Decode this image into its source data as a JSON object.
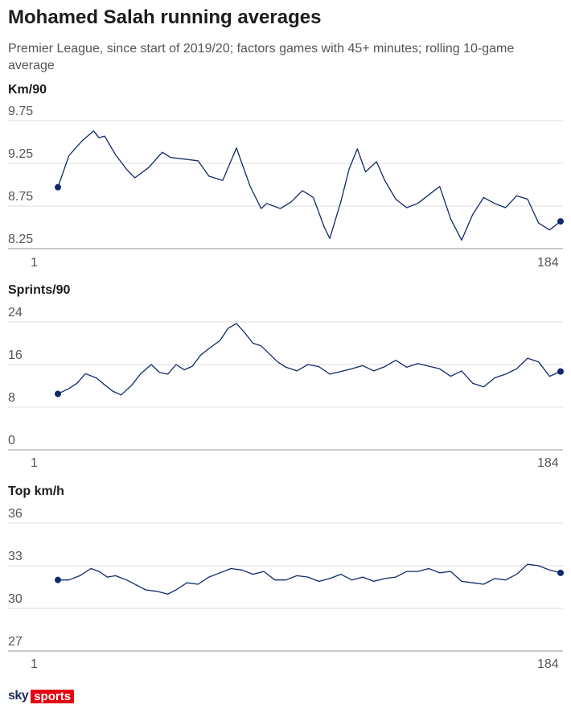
{
  "title": "Mohamed Salah running averages",
  "subtitle": "Premier League, since start of 2019/20; factors games with 45+ minutes; rolling 10-game average",
  "colors": {
    "line": "#0e2a6b",
    "grid": "#dcdcdc",
    "axis": "#999999"
  },
  "logo": {
    "sky": "sky",
    "sports": "sports"
  },
  "chart_data": [
    {
      "type": "line",
      "ylabel": "Km/90",
      "yticks": [
        "9.75",
        "9.25",
        "8.75",
        "8.25"
      ],
      "ylim": [
        8.25,
        9.75
      ],
      "xticks": [
        "1",
        "184"
      ],
      "xlim": [
        1,
        184
      ],
      "grid": true,
      "x": [
        1,
        5,
        8,
        10,
        14,
        16,
        18,
        22,
        26,
        29,
        34,
        39,
        42,
        47,
        52,
        56,
        61,
        66,
        68,
        71,
        75,
        77,
        82,
        86,
        90,
        94,
        98,
        100,
        104,
        107,
        110,
        113,
        117,
        120,
        124,
        128,
        132,
        136,
        140,
        144,
        148,
        152,
        156,
        160,
        164,
        168,
        172,
        176,
        180,
        184
      ],
      "values": [
        8.97,
        9.34,
        9.45,
        9.52,
        9.63,
        9.55,
        9.57,
        9.35,
        9.18,
        9.08,
        9.2,
        9.38,
        9.32,
        9.3,
        9.28,
        9.1,
        9.05,
        9.43,
        9.25,
        8.98,
        8.72,
        8.78,
        8.72,
        8.8,
        8.93,
        8.85,
        8.5,
        8.37,
        8.8,
        9.18,
        9.42,
        9.15,
        9.27,
        9.05,
        8.83,
        8.73,
        8.78,
        8.88,
        8.98,
        8.6,
        8.35,
        8.65,
        8.85,
        8.78,
        8.73,
        8.87,
        8.83,
        8.55,
        8.47,
        8.57
      ]
    },
    {
      "type": "line",
      "ylabel": "Sprints/90",
      "yticks": [
        "24",
        "16",
        "8",
        "0"
      ],
      "ylim": [
        0,
        24
      ],
      "xticks": [
        "1",
        "184"
      ],
      "xlim": [
        1,
        184
      ],
      "grid": true,
      "x": [
        1,
        5,
        8,
        11,
        15,
        18,
        21,
        24,
        28,
        31,
        35,
        38,
        41,
        44,
        47,
        50,
        53,
        56,
        60,
        63,
        66,
        69,
        72,
        75,
        78,
        81,
        84,
        88,
        92,
        96,
        100,
        104,
        108,
        112,
        116,
        120,
        124,
        128,
        132,
        136,
        140,
        144,
        148,
        152,
        156,
        160,
        164,
        168,
        172,
        176,
        180,
        184
      ],
      "values": [
        10.5,
        11.5,
        12.5,
        14.3,
        13.5,
        12.2,
        11.0,
        10.3,
        12.2,
        14.2,
        16.0,
        14.5,
        14.2,
        16.0,
        15.0,
        15.7,
        17.8,
        19.0,
        20.5,
        22.8,
        23.7,
        22.0,
        20.0,
        19.5,
        18.0,
        16.5,
        15.5,
        14.8,
        16.0,
        15.6,
        14.2,
        14.7,
        15.2,
        15.8,
        14.8,
        15.6,
        16.8,
        15.5,
        16.2,
        15.7,
        15.2,
        13.8,
        14.8,
        12.5,
        11.8,
        13.5,
        14.2,
        15.2,
        17.2,
        16.5,
        13.8,
        14.7
      ]
    },
    {
      "type": "line",
      "ylabel": "Top km/h",
      "yticks": [
        "36",
        "33",
        "30",
        "27"
      ],
      "ylim": [
        27,
        36
      ],
      "xticks": [
        "1",
        "184"
      ],
      "xlim": [
        1,
        184
      ],
      "grid": true,
      "x": [
        1,
        5,
        9,
        13,
        16,
        19,
        22,
        26,
        30,
        33,
        37,
        41,
        44,
        48,
        52,
        56,
        60,
        64,
        68,
        72,
        76,
        80,
        84,
        88,
        92,
        96,
        100,
        104,
        108,
        112,
        116,
        120,
        124,
        128,
        132,
        136,
        140,
        144,
        148,
        152,
        156,
        160,
        164,
        168,
        172,
        176,
        180,
        184
      ],
      "values": [
        32.0,
        32.0,
        32.3,
        32.8,
        32.6,
        32.2,
        32.3,
        32.0,
        31.6,
        31.3,
        31.2,
        31.0,
        31.3,
        31.8,
        31.7,
        32.2,
        32.5,
        32.8,
        32.7,
        32.4,
        32.6,
        32.0,
        32.0,
        32.3,
        32.2,
        31.9,
        32.1,
        32.4,
        32.0,
        32.2,
        31.9,
        32.1,
        32.2,
        32.6,
        32.6,
        32.8,
        32.5,
        32.6,
        31.9,
        31.8,
        31.7,
        32.1,
        32.0,
        32.4,
        33.1,
        33.0,
        32.7,
        32.5
      ]
    }
  ]
}
